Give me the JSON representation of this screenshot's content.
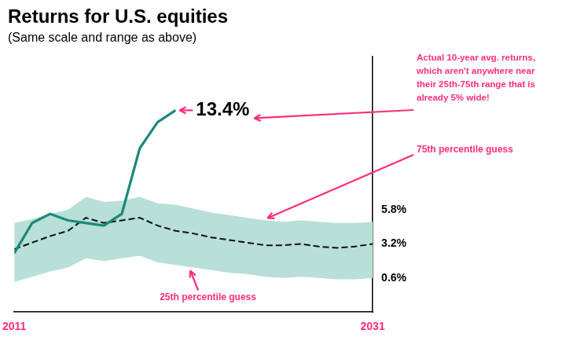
{
  "chart_data": {
    "type": "line",
    "title": "Returns for U.S. equities",
    "subtitle": "(Same scale and range as above)",
    "x": [
      2011,
      2012,
      2013,
      2014,
      2015,
      2016,
      2017,
      2018,
      2019,
      2020,
      2021,
      2022,
      2023,
      2024,
      2025,
      2026,
      2027,
      2028,
      2029,
      2030,
      2031
    ],
    "series": [
      {
        "type": "band",
        "color": "#b8dfd8",
        "values": [
          4.8,
          5.1,
          5.5,
          5.8,
          6.8,
          6.4,
          6.5,
          6.8,
          6.3,
          6.2,
          5.9,
          5.6,
          5.4,
          5.2,
          5.0,
          4.9,
          5.0,
          4.9,
          4.8,
          4.8,
          4.9
        ],
        "lower": [
          0.3,
          0.7,
          1.1,
          1.4,
          2.1,
          1.9,
          2.1,
          2.3,
          1.8,
          1.6,
          1.4,
          1.2,
          1.0,
          0.9,
          0.7,
          0.6,
          0.7,
          0.6,
          0.5,
          0.5,
          0.6
        ]
      },
      {
        "type": "line",
        "color": "#111111",
        "line_style": "dashed",
        "values": [
          2.8,
          3.3,
          3.8,
          4.2,
          5.2,
          4.8,
          5.0,
          5.2,
          4.6,
          4.2,
          4.0,
          3.7,
          3.5,
          3.3,
          3.1,
          3.1,
          3.2,
          3.0,
          2.9,
          3.0,
          3.2
        ]
      },
      {
        "type": "line",
        "color": "#1a8a7a",
        "line_style": "solid",
        "values": [
          2.5,
          4.8,
          5.5,
          5.0,
          4.8,
          4.6,
          5.5,
          10.5,
          12.5,
          13.4,
          null,
          null,
          null,
          null,
          null,
          null,
          null,
          null,
          null,
          null,
          null
        ]
      }
    ],
    "xlim": [
      2011,
      2031
    ],
    "xticks": [
      2011,
      2031
    ],
    "ylim": [
      -2.0,
      17.5
    ],
    "yticks": [
      {
        "value": 0.6,
        "label": "0.6%"
      },
      {
        "value": 3.2,
        "label": "3.2%"
      },
      {
        "value": 5.8,
        "label": "5.8%"
      }
    ],
    "grid": false,
    "annotations": [
      {
        "text": "13.4%",
        "color": "#ff2d7a"
      },
      {
        "text": "Actual 10-year avg. returns,\nwhich aren't anywhere near\ntheir 25th-75th range that is\nalready 5% wide!",
        "color": "#ff2d7a"
      },
      {
        "text": "75th percentile guess",
        "color": "#ff2d7a"
      },
      {
        "text": "25th percentile guess",
        "color": "#ff2d7a"
      }
    ]
  }
}
